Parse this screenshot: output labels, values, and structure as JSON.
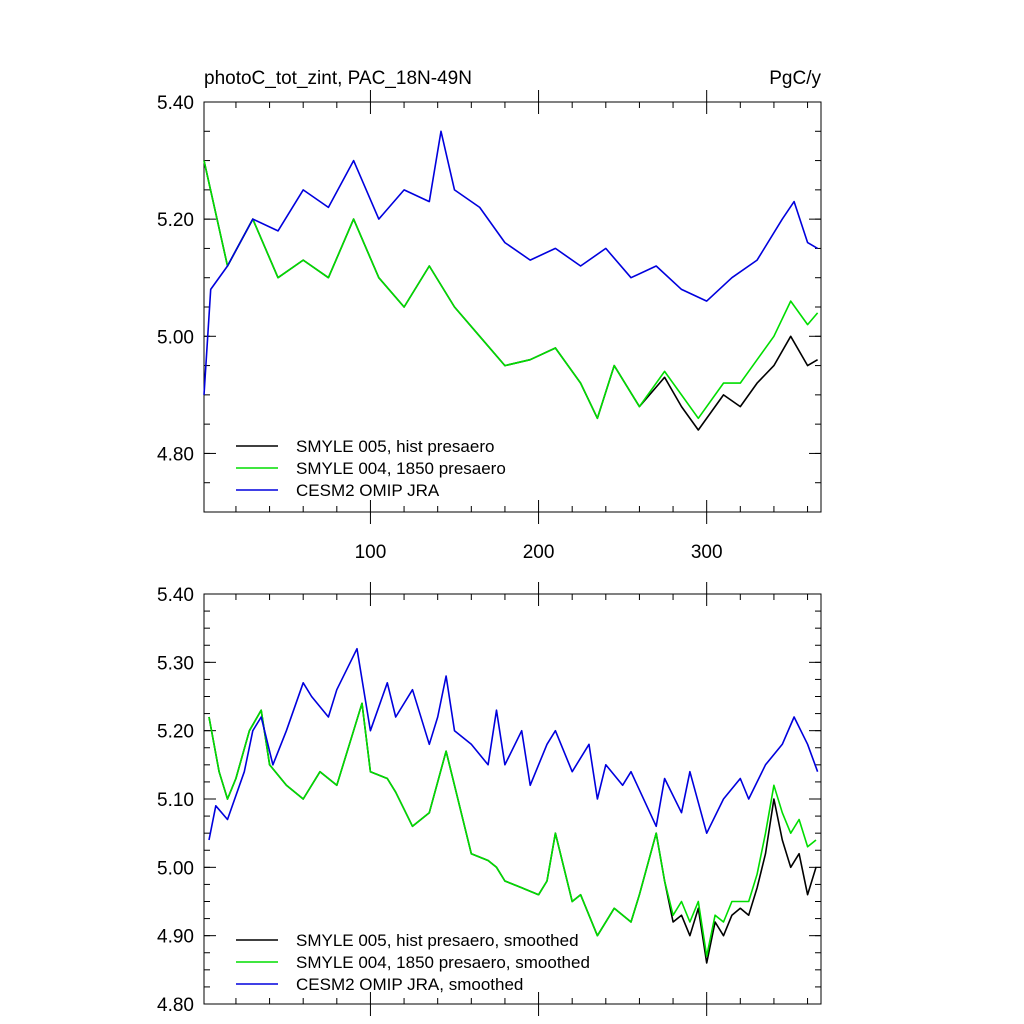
{
  "chart_data": [
    {
      "type": "line",
      "title": "photoC_tot_zint, PAC_18N-49N",
      "units": "PgC/y",
      "xlim": [
        1,
        368
      ],
      "ylim": [
        4.7,
        5.4
      ],
      "xticks": [
        100,
        200,
        300
      ],
      "yticks": [
        4.8,
        5.0,
        5.2,
        5.4
      ],
      "ytick_labels": [
        "4.80",
        "5.00",
        "5.20",
        "5.40"
      ],
      "grid": false,
      "legend_position": "bottom-left",
      "series": [
        {
          "name": "SMYLE 005, hist presaero",
          "color": "#000000",
          "x": [
            1,
            15,
            30,
            45,
            60,
            75,
            90,
            105,
            120,
            135,
            150,
            165,
            180,
            195,
            210,
            225,
            235,
            245,
            260,
            275,
            285,
            295,
            310,
            320,
            330,
            340,
            350,
            360,
            366
          ],
          "y": [
            5.3,
            5.12,
            5.2,
            5.1,
            5.13,
            5.1,
            5.2,
            5.1,
            5.05,
            5.12,
            5.05,
            5.0,
            4.95,
            4.96,
            4.98,
            4.92,
            4.86,
            4.95,
            4.88,
            4.93,
            4.88,
            4.84,
            4.9,
            4.88,
            4.92,
            4.95,
            5.0,
            4.95,
            4.96
          ]
        },
        {
          "name": "SMYLE 004, 1850 presaero",
          "color": "#00dd00",
          "x": [
            1,
            15,
            30,
            45,
            60,
            75,
            90,
            105,
            120,
            135,
            150,
            165,
            180,
            195,
            210,
            225,
            235,
            245,
            260,
            275,
            285,
            295,
            310,
            320,
            330,
            340,
            350,
            360,
            366
          ],
          "y": [
            5.3,
            5.12,
            5.2,
            5.1,
            5.13,
            5.1,
            5.2,
            5.1,
            5.05,
            5.12,
            5.05,
            5.0,
            4.95,
            4.96,
            4.98,
            4.92,
            4.86,
            4.95,
            4.88,
            4.94,
            4.9,
            4.86,
            4.92,
            4.92,
            4.96,
            5.0,
            5.06,
            5.02,
            5.04
          ]
        },
        {
          "name": "CESM2 OMIP JRA",
          "color": "#0000dd",
          "x": [
            1,
            5,
            15,
            30,
            45,
            60,
            75,
            90,
            105,
            120,
            135,
            142,
            150,
            165,
            180,
            195,
            210,
            225,
            240,
            255,
            270,
            285,
            300,
            315,
            330,
            345,
            352,
            360,
            366
          ],
          "y": [
            4.9,
            5.08,
            5.12,
            5.2,
            5.18,
            5.25,
            5.22,
            5.3,
            5.2,
            5.25,
            5.23,
            5.35,
            5.25,
            5.22,
            5.16,
            5.13,
            5.15,
            5.12,
            5.15,
            5.1,
            5.12,
            5.08,
            5.06,
            5.1,
            5.13,
            5.2,
            5.23,
            5.16,
            5.15
          ]
        }
      ]
    },
    {
      "type": "line",
      "xlim": [
        1,
        368
      ],
      "ylim": [
        4.8,
        5.4
      ],
      "xticks": [
        100,
        200,
        300
      ],
      "yticks": [
        4.8,
        4.9,
        5.0,
        5.1,
        5.2,
        5.3,
        5.4
      ],
      "ytick_labels": [
        "4.80",
        "4.90",
        "5.00",
        "5.10",
        "5.20",
        "5.30",
        "5.40"
      ],
      "grid": false,
      "legend_position": "bottom-left",
      "series": [
        {
          "name": "SMYLE 005, hist presaero, smoothed",
          "color": "#000000",
          "x": [
            4,
            10,
            15,
            20,
            28,
            35,
            40,
            50,
            60,
            70,
            80,
            90,
            95,
            100,
            110,
            115,
            125,
            135,
            145,
            150,
            160,
            170,
            175,
            180,
            190,
            200,
            205,
            210,
            220,
            225,
            235,
            245,
            255,
            260,
            270,
            275,
            280,
            285,
            290,
            295,
            300,
            305,
            310,
            315,
            320,
            325,
            330,
            335,
            340,
            345,
            350,
            355,
            360,
            365
          ],
          "y": [
            5.22,
            5.14,
            5.1,
            5.13,
            5.2,
            5.23,
            5.15,
            5.12,
            5.1,
            5.14,
            5.12,
            5.2,
            5.24,
            5.14,
            5.13,
            5.11,
            5.06,
            5.08,
            5.17,
            5.12,
            5.02,
            5.01,
            5.0,
            4.98,
            4.97,
            4.96,
            4.98,
            5.05,
            4.95,
            4.96,
            4.9,
            4.94,
            4.92,
            4.96,
            5.05,
            4.98,
            4.92,
            4.93,
            4.9,
            4.94,
            4.86,
            4.92,
            4.9,
            4.93,
            4.94,
            4.93,
            4.97,
            5.02,
            5.1,
            5.04,
            5.0,
            5.02,
            4.96,
            5.0
          ]
        },
        {
          "name": "SMYLE 004, 1850 presaero, smoothed",
          "color": "#00dd00",
          "x": [
            4,
            10,
            15,
            20,
            28,
            35,
            40,
            50,
            60,
            70,
            80,
            90,
            95,
            100,
            110,
            115,
            125,
            135,
            145,
            150,
            160,
            170,
            175,
            180,
            190,
            200,
            205,
            210,
            220,
            225,
            235,
            245,
            255,
            260,
            270,
            275,
            280,
            285,
            290,
            295,
            300,
            305,
            310,
            315,
            320,
            325,
            330,
            335,
            340,
            345,
            350,
            355,
            360,
            365
          ],
          "y": [
            5.22,
            5.14,
            5.1,
            5.13,
            5.2,
            5.23,
            5.15,
            5.12,
            5.1,
            5.14,
            5.12,
            5.2,
            5.24,
            5.14,
            5.13,
            5.11,
            5.06,
            5.08,
            5.17,
            5.12,
            5.02,
            5.01,
            5.0,
            4.98,
            4.97,
            4.96,
            4.98,
            5.05,
            4.95,
            4.96,
            4.9,
            4.94,
            4.92,
            4.96,
            5.05,
            4.98,
            4.93,
            4.95,
            4.92,
            4.95,
            4.87,
            4.93,
            4.92,
            4.95,
            4.95,
            4.95,
            4.99,
            5.05,
            5.12,
            5.08,
            5.05,
            5.07,
            5.03,
            5.04
          ]
        },
        {
          "name": "CESM2 OMIP JRA, smoothed",
          "color": "#0000dd",
          "x": [
            4,
            8,
            15,
            25,
            30,
            35,
            42,
            50,
            60,
            65,
            75,
            80,
            88,
            92,
            100,
            110,
            115,
            125,
            135,
            140,
            145,
            150,
            160,
            170,
            175,
            180,
            190,
            195,
            205,
            210,
            220,
            230,
            235,
            240,
            250,
            255,
            270,
            275,
            285,
            290,
            300,
            310,
            320,
            325,
            335,
            345,
            352,
            360,
            366
          ],
          "y": [
            5.04,
            5.09,
            5.07,
            5.14,
            5.2,
            5.22,
            5.15,
            5.2,
            5.27,
            5.25,
            5.22,
            5.26,
            5.3,
            5.32,
            5.2,
            5.27,
            5.22,
            5.26,
            5.18,
            5.22,
            5.28,
            5.2,
            5.18,
            5.15,
            5.23,
            5.15,
            5.2,
            5.12,
            5.18,
            5.2,
            5.14,
            5.18,
            5.1,
            5.15,
            5.12,
            5.14,
            5.06,
            5.13,
            5.08,
            5.14,
            5.05,
            5.1,
            5.13,
            5.1,
            5.15,
            5.18,
            5.22,
            5.18,
            5.14
          ]
        }
      ]
    }
  ]
}
